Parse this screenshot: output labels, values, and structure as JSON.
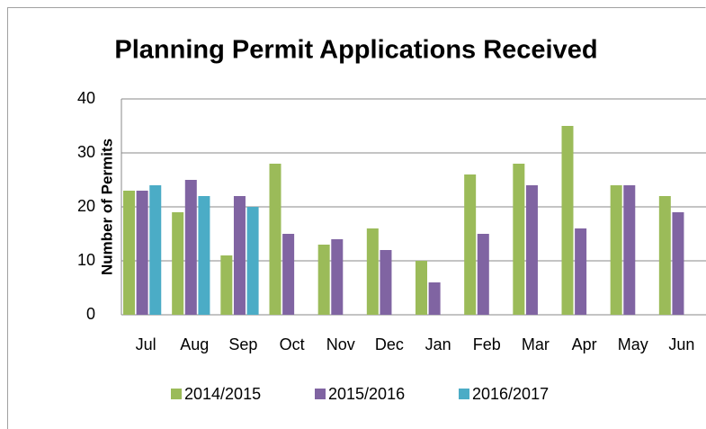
{
  "chart_data": {
    "type": "bar",
    "title": "Planning Permit Applications Received",
    "y_label": "Number of Permits",
    "categories": [
      "Jul",
      "Aug",
      "Sep",
      "Oct",
      "Nov",
      "Dec",
      "Jan",
      "Feb",
      "Mar",
      "Apr",
      "May",
      "Jun"
    ],
    "series": [
      {
        "name": "2014/2015",
        "color": "#9bbb59",
        "values": [
          23,
          19,
          11,
          28,
          13,
          16,
          10,
          26,
          28,
          35,
          24,
          22
        ]
      },
      {
        "name": "2015/2016",
        "color": "#8064a2",
        "values": [
          23,
          25,
          22,
          15,
          14,
          12,
          6,
          15,
          24,
          16,
          24,
          19
        ]
      },
      {
        "name": "2016/2017",
        "color": "#4bacc6",
        "values": [
          24,
          22,
          20,
          null,
          null,
          null,
          null,
          null,
          null,
          null,
          null,
          null
        ]
      }
    ],
    "ylim": [
      0,
      40
    ],
    "yticks": [
      0,
      10,
      20,
      30,
      40
    ],
    "grid": true,
    "legend": "bottom"
  }
}
